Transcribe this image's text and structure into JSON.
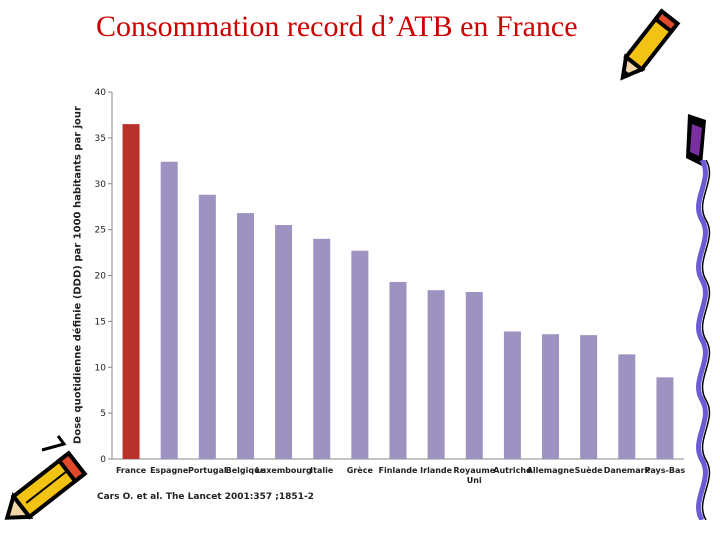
{
  "title": "Consommation record d’ATB en France",
  "source": "Cars O. et al. The Lancet 2001:357 ;1851-2",
  "chart_data": {
    "type": "bar",
    "title": "",
    "xlabel": "",
    "ylabel": "Dose quotidienne définie (DDD) par 1000 habitants par jour",
    "ylim": [
      0,
      40
    ],
    "yticks": [
      0,
      5,
      10,
      15,
      20,
      25,
      30,
      35,
      40
    ],
    "categories": [
      "France",
      "Espagne",
      "Portugal",
      "Belgique",
      "Luxembourg",
      "Italie",
      "Grèce",
      "Finlande",
      "Irlande",
      "Royaume Uni",
      "Autriche",
      "Allemagne",
      "Suède",
      "Danemark",
      "Pays-Bas"
    ],
    "values": [
      36.5,
      32.4,
      28.8,
      26.8,
      25.5,
      24.0,
      22.7,
      19.3,
      18.4,
      18.2,
      13.9,
      13.6,
      13.5,
      11.4,
      8.9
    ],
    "highlight_color": "#b8312b",
    "bar_color": "#9d92c0",
    "grid": false
  }
}
